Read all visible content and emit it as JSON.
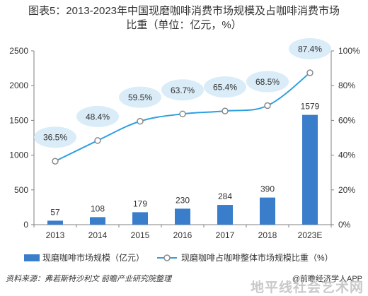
{
  "title_line1": "图表5：2013-2023年中国现磨咖啡消费市场规模及占咖啡消费市场",
  "title_line2": "比重（单位：亿元，%）",
  "chart_data": {
    "type": "bar",
    "categories": [
      "2013",
      "2014",
      "2015",
      "2016",
      "2017",
      "2018",
      "2023E"
    ],
    "series": [
      {
        "name": "现磨咖啡市场规模（亿元）",
        "type": "bar",
        "axis": "left",
        "values": [
          57,
          108,
          179,
          230,
          284,
          390,
          1579
        ],
        "color": "#3a7ecb"
      },
      {
        "name": "现磨咖啡占咖啡整体市场规模比重（%）",
        "type": "line",
        "axis": "right",
        "values": [
          36.5,
          48.4,
          59.5,
          63.7,
          65.4,
          68.5,
          87.4
        ],
        "labels": [
          "36.5%",
          "48.4%",
          "59.5%",
          "63.7%",
          "65.4%",
          "68.5%",
          "87.4%"
        ],
        "color": "#2d9fe0",
        "bubble_color": "#d9ecf7"
      }
    ],
    "ylim_left": [
      0,
      2500
    ],
    "yticks_left": [
      "0",
      "500",
      "1000",
      "1500",
      "2000",
      "2500"
    ],
    "ylim_right": [
      0,
      100
    ],
    "yticks_right": [
      "0%",
      "20%",
      "40%",
      "60%",
      "80%",
      "100%"
    ],
    "grid": false,
    "legend": "bottom"
  },
  "source": "资料来源：弗若斯特沙利文 前瞻产业研究院整理",
  "brand": "@前瞻经济学人APP",
  "footer_watermark": "地平线社会艺术网"
}
